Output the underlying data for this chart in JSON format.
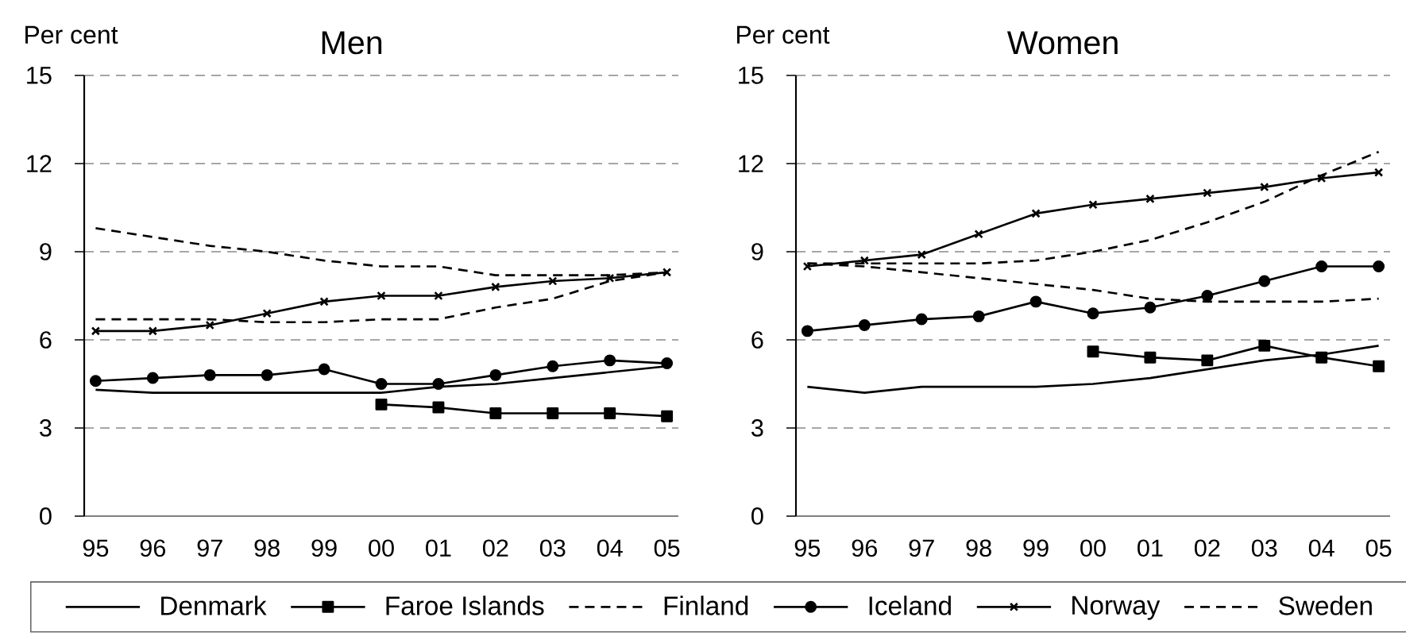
{
  "chart_data": [
    {
      "type": "line",
      "title": "Men",
      "ylabel": "Per cent",
      "categories": [
        "95",
        "96",
        "97",
        "98",
        "99",
        "00",
        "01",
        "02",
        "03",
        "04",
        "05"
      ],
      "ylim": [
        0,
        15
      ],
      "yticks": [
        0,
        3,
        6,
        9,
        12,
        15
      ],
      "grid": "y",
      "legend": "bottom",
      "series": [
        {
          "name": "Denmark",
          "color": "#000000",
          "marker": "none",
          "line_style": "solid",
          "values": [
            4.3,
            4.2,
            4.2,
            4.2,
            4.2,
            4.2,
            4.4,
            4.5,
            4.7,
            4.9,
            5.1
          ]
        },
        {
          "name": "Faroe Islands",
          "color": "#000000",
          "marker": "square",
          "line_style": "solid",
          "values": [
            null,
            null,
            null,
            null,
            null,
            3.8,
            3.7,
            3.5,
            3.5,
            3.5,
            3.4
          ]
        },
        {
          "name": "Finland",
          "color": "#000000",
          "marker": "none",
          "line_style": "dashed",
          "values": [
            9.8,
            9.5,
            9.2,
            9.0,
            8.7,
            8.5,
            8.5,
            8.2,
            8.2,
            8.2,
            8.3
          ]
        },
        {
          "name": "Iceland",
          "color": "#000000",
          "marker": "circle",
          "line_style": "solid",
          "values": [
            4.6,
            4.7,
            4.8,
            4.8,
            5.0,
            4.5,
            4.5,
            4.8,
            5.1,
            5.3,
            5.2
          ]
        },
        {
          "name": "Norway",
          "color": "#000000",
          "marker": "cross",
          "line_style": "solid",
          "values": [
            6.3,
            6.3,
            6.5,
            6.9,
            7.3,
            7.5,
            7.5,
            7.8,
            8.0,
            8.1,
            8.3
          ]
        },
        {
          "name": "Sweden",
          "color": "#000000",
          "marker": "none",
          "line_style": "dashed",
          "values": [
            6.7,
            6.7,
            6.7,
            6.6,
            6.6,
            6.7,
            6.7,
            7.1,
            7.4,
            8.0,
            8.3
          ]
        }
      ]
    },
    {
      "type": "line",
      "title": "Women",
      "ylabel": "Per cent",
      "categories": [
        "95",
        "96",
        "97",
        "98",
        "99",
        "00",
        "01",
        "02",
        "03",
        "04",
        "05"
      ],
      "ylim": [
        0,
        15
      ],
      "yticks": [
        0,
        3,
        6,
        9,
        12,
        15
      ],
      "grid": "y",
      "series": [
        {
          "color": "#000000",
          "marker": "none",
          "line_style": "solid",
          "values": [
            4.4,
            4.2,
            4.4,
            4.4,
            4.4,
            4.5,
            4.7,
            5.0,
            5.3,
            5.5,
            5.8
          ]
        },
        {
          "color": "#000000",
          "marker": "square",
          "line_style": "solid",
          "values": [
            null,
            null,
            null,
            null,
            null,
            5.6,
            5.4,
            5.3,
            5.8,
            5.4,
            5.1
          ]
        },
        {
          "color": "#000000",
          "marker": "none",
          "line_style": "dashed",
          "values": [
            8.6,
            8.5,
            8.3,
            8.1,
            7.9,
            7.7,
            7.4,
            7.3,
            7.3,
            7.3,
            7.4
          ]
        },
        {
          "color": "#000000",
          "marker": "circle",
          "line_style": "solid",
          "values": [
            6.3,
            6.5,
            6.7,
            6.8,
            7.3,
            6.9,
            7.1,
            7.5,
            8.0,
            8.5,
            8.5
          ]
        },
        {
          "color": "#000000",
          "marker": "cross",
          "line_style": "solid",
          "values": [
            8.5,
            8.7,
            8.9,
            9.6,
            10.3,
            10.6,
            10.8,
            11.0,
            11.2,
            11.5,
            11.7
          ]
        },
        {
          "color": "#000000",
          "marker": "none",
          "line_style": "dashed",
          "values": [
            8.6,
            8.6,
            8.6,
            8.6,
            8.7,
            9.0,
            9.4,
            10.0,
            10.7,
            11.6,
            12.4
          ]
        }
      ]
    }
  ]
}
